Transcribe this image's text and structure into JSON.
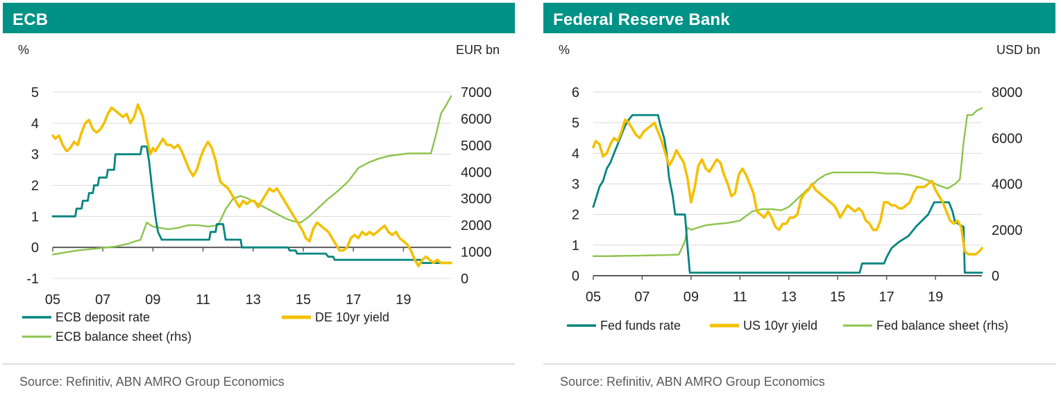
{
  "colors": {
    "header_bg": "#009286",
    "policy_rate": "#00847f",
    "yield": "#f3c000",
    "balance_sheet": "#8cc34a",
    "grid": "#d9d9d9",
    "zero_axis": "#595959"
  },
  "left": {
    "title": "ECB",
    "source": "Source: Refinitiv, ABN AMRO Group Economics",
    "unit_left": "%",
    "unit_right": "EUR bn"
  },
  "right": {
    "title": "Federal Reserve Bank",
    "source": "Source: Refinitiv, ABN AMRO Group Economics",
    "unit_left": "%",
    "unit_right": "USD bn"
  },
  "chart_data": [
    {
      "type": "line",
      "title": "ECB",
      "ylabel": "%",
      "ylabel_right": "EUR bn",
      "xlim": [
        2005,
        2020.9
      ],
      "ylim": [
        -1,
        5
      ],
      "ylim_right": [
        0,
        7000
      ],
      "yticks": [
        -1,
        0,
        1,
        2,
        3,
        4,
        5
      ],
      "yticks_right": [
        0,
        1000,
        2000,
        3000,
        4000,
        5000,
        6000,
        7000
      ],
      "xticks": [
        2005,
        2007,
        2009,
        2011,
        2013,
        2015,
        2017,
        2019
      ],
      "xtick_labels": [
        "05",
        "07",
        "09",
        "11",
        "13",
        "15",
        "17",
        "19"
      ],
      "legend": [
        "ECB deposit rate",
        "DE 10yr yield",
        "ECB balance sheet (rhs)"
      ],
      "series": [
        {
          "name": "ECB deposit rate",
          "axis": "left",
          "color_key": "policy_rate",
          "x": [
            2005.0,
            2005.9,
            2005.95,
            2006.15,
            2006.2,
            2006.4,
            2006.45,
            2006.6,
            2006.65,
            2006.8,
            2006.85,
            2007.15,
            2007.2,
            2007.45,
            2007.5,
            2008.5,
            2008.55,
            2008.75,
            2008.85,
            2008.95,
            2009.1,
            2009.2,
            2009.35,
            2011.25,
            2011.3,
            2011.5,
            2011.55,
            2011.8,
            2011.9,
            2012.5,
            2012.55,
            2014.4,
            2014.45,
            2014.7,
            2014.75,
            2015.9,
            2016.0,
            2016.2,
            2016.25,
            2019.7,
            2019.75,
            2020.9
          ],
          "values": [
            1.0,
            1.0,
            1.25,
            1.25,
            1.5,
            1.5,
            1.75,
            1.75,
            2.0,
            2.0,
            2.25,
            2.25,
            2.5,
            2.5,
            3.0,
            3.0,
            3.25,
            3.25,
            2.75,
            2.0,
            1.0,
            0.5,
            0.25,
            0.25,
            0.5,
            0.5,
            0.75,
            0.75,
            0.25,
            0.25,
            0.0,
            0.0,
            -0.1,
            -0.1,
            -0.2,
            -0.2,
            -0.3,
            -0.3,
            -0.4,
            -0.4,
            -0.5,
            -0.5
          ]
        },
        {
          "name": "DE 10yr yield",
          "axis": "left",
          "color_key": "yield",
          "x": [
            2005.0,
            2005.1,
            2005.25,
            2005.4,
            2005.55,
            2005.7,
            2005.85,
            2006.0,
            2006.15,
            2006.3,
            2006.45,
            2006.6,
            2006.75,
            2006.9,
            2007.05,
            2007.2,
            2007.35,
            2007.5,
            2007.65,
            2007.8,
            2007.95,
            2008.1,
            2008.25,
            2008.4,
            2008.5,
            2008.6,
            2008.75,
            2008.9,
            2009.0,
            2009.1,
            2009.25,
            2009.4,
            2009.55,
            2009.7,
            2009.85,
            2010.0,
            2010.15,
            2010.3,
            2010.45,
            2010.6,
            2010.75,
            2010.9,
            2011.05,
            2011.2,
            2011.35,
            2011.5,
            2011.6,
            2011.7,
            2011.85,
            2012.0,
            2012.15,
            2012.3,
            2012.45,
            2012.6,
            2012.75,
            2012.9,
            2013.05,
            2013.2,
            2013.35,
            2013.5,
            2013.65,
            2013.8,
            2013.95,
            2014.1,
            2014.25,
            2014.4,
            2014.55,
            2014.7,
            2014.85,
            2015.0,
            2015.1,
            2015.25,
            2015.4,
            2015.55,
            2015.7,
            2015.85,
            2016.0,
            2016.15,
            2016.3,
            2016.45,
            2016.6,
            2016.75,
            2016.9,
            2017.05,
            2017.2,
            2017.35,
            2017.5,
            2017.65,
            2017.8,
            2017.95,
            2018.1,
            2018.25,
            2018.4,
            2018.55,
            2018.7,
            2018.85,
            2019.0,
            2019.15,
            2019.3,
            2019.45,
            2019.6,
            2019.75,
            2019.9,
            2020.05,
            2020.2,
            2020.35,
            2020.5,
            2020.65,
            2020.8,
            2020.9
          ],
          "values": [
            3.6,
            3.5,
            3.6,
            3.3,
            3.1,
            3.2,
            3.4,
            3.3,
            3.7,
            4.0,
            4.1,
            3.8,
            3.7,
            3.8,
            4.0,
            4.3,
            4.5,
            4.4,
            4.3,
            4.2,
            4.3,
            4.0,
            4.2,
            4.6,
            4.4,
            4.2,
            3.5,
            3.0,
            3.2,
            3.1,
            3.3,
            3.5,
            3.3,
            3.3,
            3.2,
            3.3,
            3.1,
            2.8,
            2.5,
            2.3,
            2.5,
            2.9,
            3.2,
            3.4,
            3.2,
            2.8,
            2.4,
            2.1,
            2.0,
            1.9,
            1.7,
            1.5,
            1.3,
            1.5,
            1.4,
            1.5,
            1.5,
            1.3,
            1.5,
            1.7,
            1.9,
            1.8,
            1.9,
            1.7,
            1.5,
            1.3,
            1.1,
            0.9,
            0.7,
            0.5,
            0.3,
            0.2,
            0.6,
            0.8,
            0.7,
            0.6,
            0.5,
            0.3,
            0.1,
            -0.1,
            -0.1,
            0.0,
            0.3,
            0.4,
            0.3,
            0.5,
            0.4,
            0.5,
            0.4,
            0.5,
            0.6,
            0.7,
            0.5,
            0.4,
            0.5,
            0.3,
            0.2,
            0.1,
            -0.1,
            -0.4,
            -0.6,
            -0.4,
            -0.3,
            -0.4,
            -0.5,
            -0.4,
            -0.5,
            -0.5,
            -0.5,
            -0.5
          ]
        },
        {
          "name": "ECB balance sheet (rhs)",
          "axis": "right",
          "color_key": "balance_sheet",
          "x": [
            2005.0,
            2005.5,
            2006.0,
            2006.5,
            2007.0,
            2007.5,
            2008.0,
            2008.3,
            2008.5,
            2008.75,
            2009.0,
            2009.3,
            2009.6,
            2010.0,
            2010.4,
            2010.8,
            2011.2,
            2011.6,
            2011.9,
            2012.2,
            2012.5,
            2012.8,
            2013.2,
            2013.6,
            2014.0,
            2014.3,
            2014.6,
            2014.9,
            2015.2,
            2015.6,
            2016.0,
            2016.4,
            2016.8,
            2017.2,
            2017.6,
            2018.0,
            2018.4,
            2018.8,
            2019.2,
            2019.6,
            2019.9,
            2020.1,
            2020.3,
            2020.5,
            2020.7,
            2020.9
          ],
          "values": [
            900,
            980,
            1050,
            1100,
            1150,
            1200,
            1300,
            1400,
            1450,
            2100,
            1950,
            1900,
            1850,
            1900,
            2000,
            2000,
            1950,
            2000,
            2600,
            3000,
            3100,
            3000,
            2800,
            2600,
            2400,
            2250,
            2150,
            2100,
            2300,
            2650,
            3000,
            3300,
            3650,
            4150,
            4350,
            4500,
            4600,
            4650,
            4700,
            4700,
            4700,
            4700,
            5400,
            6200,
            6500,
            6850
          ]
        }
      ]
    },
    {
      "type": "line",
      "title": "Federal Reserve Bank",
      "ylabel": "%",
      "ylabel_right": "USD bn",
      "xlim": [
        2005,
        2020.9
      ],
      "ylim": [
        0,
        6
      ],
      "ylim_right": [
        0,
        8000
      ],
      "yticks": [
        0,
        1,
        2,
        3,
        4,
        5,
        6
      ],
      "yticks_right": [
        0,
        2000,
        4000,
        6000,
        8000
      ],
      "xticks": [
        2005,
        2007,
        2009,
        2011,
        2013,
        2015,
        2017,
        2019
      ],
      "xtick_labels": [
        "05",
        "07",
        "09",
        "11",
        "13",
        "15",
        "17",
        "19"
      ],
      "legend": [
        "Fed funds rate",
        "US 10yr yield",
        "Fed balance sheet (rhs)"
      ],
      "series": [
        {
          "name": "Fed funds rate",
          "axis": "left",
          "color_key": "policy_rate",
          "x": [
            2005.0,
            2005.1,
            2005.25,
            2005.4,
            2005.55,
            2005.7,
            2005.85,
            2006.0,
            2006.15,
            2006.3,
            2006.45,
            2006.6,
            2007.65,
            2007.75,
            2007.9,
            2008.0,
            2008.1,
            2008.25,
            2008.35,
            2008.75,
            2008.85,
            2008.95,
            2015.9,
            2016.0,
            2016.9,
            2017.0,
            2017.2,
            2017.5,
            2017.9,
            2018.2,
            2018.45,
            2018.7,
            2018.95,
            2019.55,
            2019.7,
            2019.8,
            2020.15,
            2020.2,
            2020.9
          ],
          "values": [
            2.25,
            2.5,
            2.9,
            3.1,
            3.5,
            3.7,
            4.0,
            4.3,
            4.6,
            4.9,
            5.1,
            5.25,
            5.25,
            4.9,
            4.5,
            4.0,
            3.2,
            2.6,
            2.0,
            2.0,
            1.0,
            0.1,
            0.1,
            0.4,
            0.4,
            0.6,
            0.9,
            1.1,
            1.3,
            1.6,
            1.8,
            2.0,
            2.4,
            2.4,
            2.1,
            1.75,
            1.6,
            0.1,
            0.1
          ]
        },
        {
          "name": "US 10yr yield",
          "axis": "left",
          "color_key": "yield",
          "x": [
            2005.0,
            2005.1,
            2005.25,
            2005.4,
            2005.55,
            2005.7,
            2005.85,
            2006.0,
            2006.15,
            2006.3,
            2006.45,
            2006.6,
            2006.75,
            2006.9,
            2007.05,
            2007.2,
            2007.35,
            2007.5,
            2007.65,
            2007.8,
            2007.95,
            2008.1,
            2008.25,
            2008.4,
            2008.55,
            2008.7,
            2008.85,
            2009.0,
            2009.15,
            2009.3,
            2009.45,
            2009.6,
            2009.75,
            2009.9,
            2010.05,
            2010.2,
            2010.35,
            2010.5,
            2010.65,
            2010.8,
            2010.95,
            2011.1,
            2011.25,
            2011.4,
            2011.55,
            2011.7,
            2011.85,
            2012.0,
            2012.15,
            2012.3,
            2012.45,
            2012.6,
            2012.75,
            2012.9,
            2013.05,
            2013.2,
            2013.35,
            2013.5,
            2013.65,
            2013.8,
            2013.95,
            2014.1,
            2014.25,
            2014.4,
            2014.55,
            2014.7,
            2014.85,
            2015.0,
            2015.1,
            2015.25,
            2015.4,
            2015.55,
            2015.7,
            2015.85,
            2016.0,
            2016.15,
            2016.3,
            2016.45,
            2016.6,
            2016.75,
            2016.9,
            2017.05,
            2017.2,
            2017.35,
            2017.5,
            2017.65,
            2017.8,
            2017.95,
            2018.1,
            2018.25,
            2018.4,
            2018.55,
            2018.7,
            2018.85,
            2019.0,
            2019.15,
            2019.3,
            2019.45,
            2019.6,
            2019.75,
            2019.9,
            2020.05,
            2020.2,
            2020.35,
            2020.5,
            2020.65,
            2020.8,
            2020.9
          ],
          "values": [
            4.2,
            4.4,
            4.3,
            3.9,
            4.0,
            4.3,
            4.5,
            4.4,
            4.7,
            5.1,
            5.0,
            4.8,
            4.6,
            4.5,
            4.7,
            4.8,
            4.9,
            5.0,
            4.7,
            4.4,
            4.0,
            3.6,
            3.8,
            4.1,
            3.9,
            3.7,
            3.2,
            2.4,
            2.9,
            3.6,
            3.8,
            3.5,
            3.4,
            3.6,
            3.8,
            3.7,
            3.3,
            3.0,
            2.6,
            2.7,
            3.3,
            3.5,
            3.3,
            3.0,
            2.7,
            2.1,
            2.0,
            1.9,
            2.1,
            1.9,
            1.6,
            1.5,
            1.7,
            1.7,
            1.9,
            1.9,
            2.0,
            2.5,
            2.7,
            2.8,
            3.0,
            2.8,
            2.7,
            2.6,
            2.5,
            2.4,
            2.3,
            2.1,
            1.9,
            2.1,
            2.3,
            2.2,
            2.1,
            2.2,
            2.1,
            1.8,
            1.7,
            1.5,
            1.5,
            1.8,
            2.4,
            2.4,
            2.3,
            2.3,
            2.2,
            2.2,
            2.3,
            2.4,
            2.7,
            2.9,
            2.9,
            2.9,
            3.0,
            3.1,
            2.8,
            2.6,
            2.4,
            2.1,
            1.8,
            1.7,
            1.8,
            1.6,
            0.8,
            0.7,
            0.7,
            0.7,
            0.8,
            0.9
          ]
        },
        {
          "name": "Fed balance sheet (rhs)",
          "axis": "right",
          "color_key": "balance_sheet",
          "x": [
            2005.0,
            2005.5,
            2006.0,
            2006.5,
            2007.0,
            2007.5,
            2008.0,
            2008.5,
            2008.75,
            2008.85,
            2009.0,
            2009.3,
            2009.6,
            2010.0,
            2010.5,
            2011.0,
            2011.5,
            2011.9,
            2012.3,
            2012.7,
            2013.0,
            2013.3,
            2013.6,
            2013.9,
            2014.2,
            2014.5,
            2014.8,
            2015.2,
            2015.6,
            2016.0,
            2016.5,
            2017.0,
            2017.5,
            2017.9,
            2018.3,
            2018.7,
            2019.1,
            2019.5,
            2019.8,
            2020.0,
            2020.15,
            2020.3,
            2020.5,
            2020.7,
            2020.9
          ],
          "values": [
            850,
            850,
            860,
            870,
            880,
            890,
            900,
            920,
            1500,
            2100,
            2000,
            2100,
            2200,
            2250,
            2300,
            2400,
            2800,
            2900,
            2900,
            2850,
            3000,
            3300,
            3600,
            3900,
            4200,
            4400,
            4500,
            4500,
            4500,
            4500,
            4500,
            4450,
            4450,
            4400,
            4300,
            4150,
            3950,
            3800,
            4000,
            4200,
            5800,
            7000,
            7000,
            7200,
            7300
          ]
        }
      ]
    }
  ]
}
